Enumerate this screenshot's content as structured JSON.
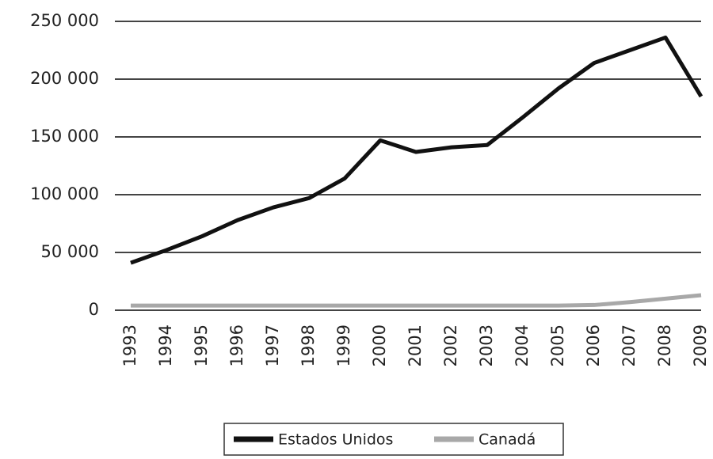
{
  "chart_data": {
    "type": "line",
    "categories": [
      "1993",
      "1994",
      "1995",
      "1996",
      "1997",
      "1998",
      "1999",
      "2000",
      "2001",
      "2002",
      "2003",
      "2004",
      "2005",
      "2006",
      "2007",
      "2008",
      "2009"
    ],
    "series": [
      {
        "name": "Estados Unidos",
        "color": "#111111",
        "values": [
          41000,
          52000,
          64000,
          78000,
          89000,
          97000,
          114000,
          147000,
          137000,
          141000,
          143000,
          167000,
          192000,
          214000,
          225000,
          236000,
          185000
        ]
      },
      {
        "name": "Canadá",
        "color": "#a8a8a8",
        "values": [
          4000,
          4000,
          4000,
          4000,
          4000,
          4000,
          4000,
          4000,
          4000,
          4000,
          4000,
          4000,
          4000,
          4500,
          7000,
          10000,
          13000
        ]
      }
    ],
    "ylim": [
      0,
      250000
    ],
    "yticks": [
      {
        "value": 0,
        "label": "0"
      },
      {
        "value": 50000,
        "label": "50 000"
      },
      {
        "value": 100000,
        "label": "100 000"
      },
      {
        "value": 150000,
        "label": "150 000"
      },
      {
        "value": 200000,
        "label": "200 000"
      },
      {
        "value": 250000,
        "label": "250 000"
      }
    ],
    "grid": true,
    "legend": "bottom"
  }
}
